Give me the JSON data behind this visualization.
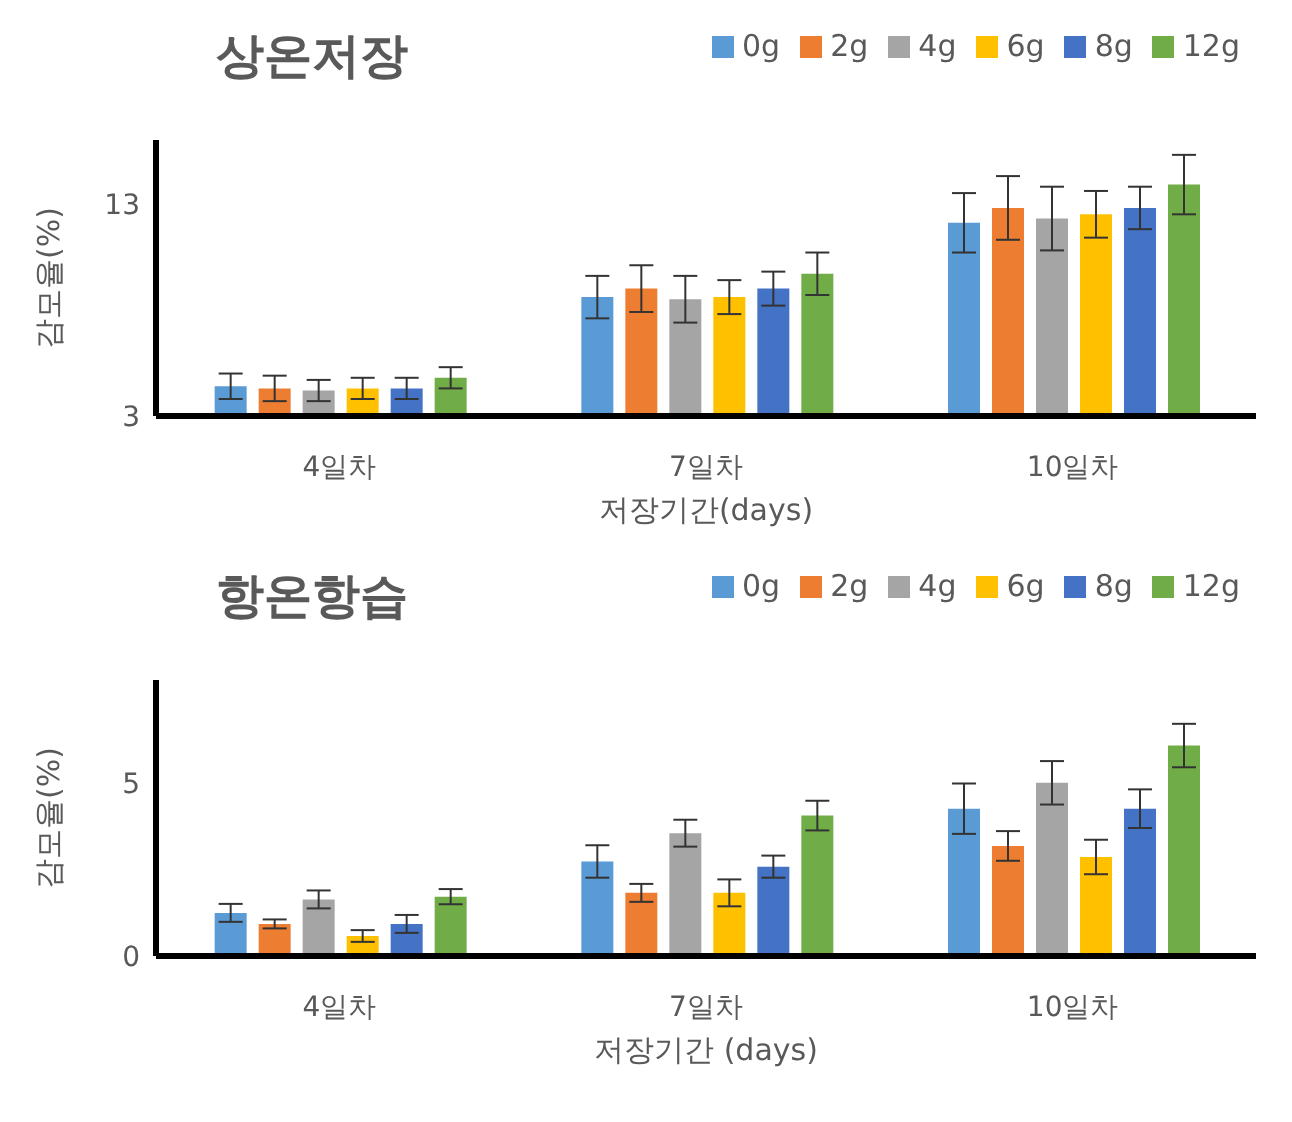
{
  "chart_data": [
    {
      "type": "bar",
      "title": "상온저장",
      "xlabel": "저장기간(days)",
      "ylabel": "감모율(%)",
      "categories": [
        "4일차",
        "7일차",
        "10일차"
      ],
      "ylim": [
        3,
        16
      ],
      "yticks": [
        3,
        13
      ],
      "grid": false,
      "legend": "top right",
      "series": [
        {
          "name": "0g",
          "color": "#5b9bd5",
          "values": [
            4.4,
            8.6,
            12.1
          ],
          "errors": [
            0.6,
            1.0,
            1.4
          ]
        },
        {
          "name": "2g",
          "color": "#ed7d31",
          "values": [
            4.3,
            9.0,
            12.8
          ],
          "errors": [
            0.6,
            1.1,
            1.5
          ]
        },
        {
          "name": "4g",
          "color": "#a5a5a5",
          "values": [
            4.2,
            8.5,
            12.3
          ],
          "errors": [
            0.5,
            1.1,
            1.5
          ]
        },
        {
          "name": "6g",
          "color": "#ffc000",
          "values": [
            4.3,
            8.6,
            12.5
          ],
          "errors": [
            0.5,
            0.8,
            1.1
          ]
        },
        {
          "name": "8g",
          "color": "#4472c4",
          "values": [
            4.3,
            9.0,
            12.8
          ],
          "errors": [
            0.5,
            0.8,
            1.0
          ]
        },
        {
          "name": "12g",
          "color": "#70ad47",
          "values": [
            4.8,
            9.7,
            13.9
          ],
          "errors": [
            0.5,
            1.0,
            1.4
          ]
        }
      ]
    },
    {
      "type": "bar",
      "title": "항온항습",
      "xlabel": "저장기간 (days)",
      "ylabel": "감모율(%)",
      "categories": [
        "4일차",
        "7일차",
        "10일차"
      ],
      "ylim": [
        0,
        8
      ],
      "yticks": [
        0,
        5
      ],
      "grid": false,
      "legend": "top right",
      "series": [
        {
          "name": "0g",
          "color": "#5b9bd5",
          "values": [
            1.25,
            2.74,
            4.27
          ],
          "errors": [
            0.26,
            0.47,
            0.73
          ]
        },
        {
          "name": "2g",
          "color": "#ed7d31",
          "values": [
            0.93,
            1.83,
            3.19
          ],
          "errors": [
            0.13,
            0.26,
            0.43
          ]
        },
        {
          "name": "4g",
          "color": "#a5a5a5",
          "values": [
            1.64,
            3.56,
            5.02
          ],
          "errors": [
            0.26,
            0.39,
            0.63
          ]
        },
        {
          "name": "6g",
          "color": "#ffc000",
          "values": [
            0.58,
            1.83,
            2.87
          ],
          "errors": [
            0.17,
            0.39,
            0.5
          ]
        },
        {
          "name": "8g",
          "color": "#4472c4",
          "values": [
            0.93,
            2.59,
            4.27
          ],
          "errors": [
            0.26,
            0.32,
            0.56
          ]
        },
        {
          "name": "12g",
          "color": "#70ad47",
          "values": [
            1.72,
            4.07,
            6.1
          ],
          "errors": [
            0.22,
            0.43,
            0.63
          ]
        }
      ]
    }
  ]
}
